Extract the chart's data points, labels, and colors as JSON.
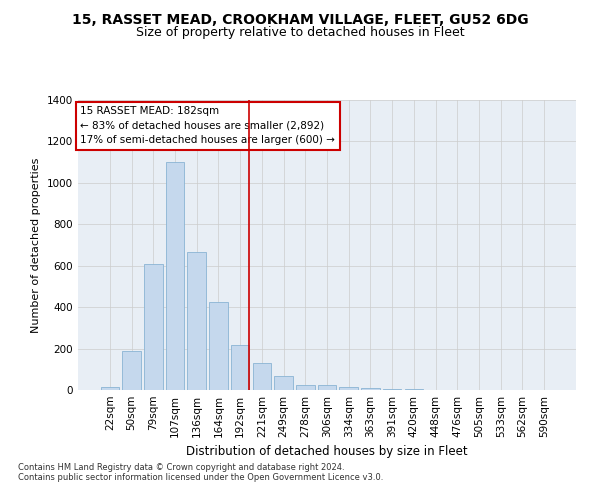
{
  "title1": "15, RASSET MEAD, CROOKHAM VILLAGE, FLEET, GU52 6DG",
  "title2": "Size of property relative to detached houses in Fleet",
  "xlabel": "Distribution of detached houses by size in Fleet",
  "ylabel": "Number of detached properties",
  "categories": [
    "22sqm",
    "50sqm",
    "79sqm",
    "107sqm",
    "136sqm",
    "164sqm",
    "192sqm",
    "221sqm",
    "249sqm",
    "278sqm",
    "306sqm",
    "334sqm",
    "363sqm",
    "391sqm",
    "420sqm",
    "448sqm",
    "476sqm",
    "505sqm",
    "533sqm",
    "562sqm",
    "590sqm"
  ],
  "values": [
    15,
    190,
    610,
    1100,
    665,
    425,
    215,
    130,
    70,
    25,
    25,
    15,
    10,
    5,
    5,
    2,
    0,
    0,
    0,
    0,
    0
  ],
  "bar_color": "#c5d8ed",
  "bar_edge_color": "#8ab4d4",
  "red_line_index": 6,
  "annotation_text": "15 RASSET MEAD: 182sqm\n← 83% of detached houses are smaller (2,892)\n17% of semi-detached houses are larger (600) →",
  "annotation_box_color": "#ffffff",
  "annotation_box_edge": "#cc0000",
  "red_line_color": "#cc0000",
  "background_color": "#ffffff",
  "plot_bg_color": "#e8eef5",
  "ylim": [
    0,
    1400
  ],
  "yticks": [
    0,
    200,
    400,
    600,
    800,
    1000,
    1200,
    1400
  ],
  "footer1": "Contains HM Land Registry data © Crown copyright and database right 2024.",
  "footer2": "Contains public sector information licensed under the Open Government Licence v3.0.",
  "title1_fontsize": 10,
  "title2_fontsize": 9,
  "xlabel_fontsize": 8.5,
  "ylabel_fontsize": 8,
  "tick_fontsize": 7.5,
  "annotation_fontsize": 7.5,
  "footer_fontsize": 6
}
